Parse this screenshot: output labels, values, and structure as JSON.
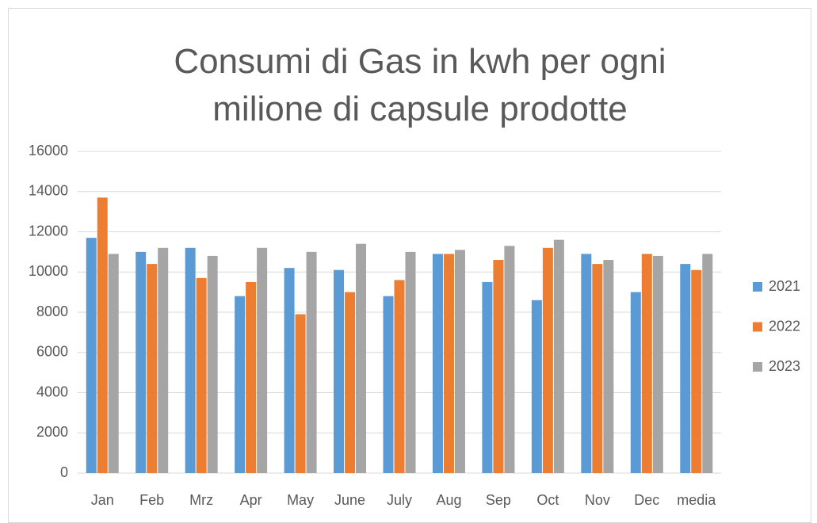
{
  "chart_data": {
    "type": "bar",
    "title": "Consumi di Gas in kwh per ogni milione di capsule prodotte",
    "categories": [
      "Jan",
      "Feb",
      "Mrz",
      "Apr",
      "May",
      "June",
      "July",
      "Aug",
      "Sep",
      "Oct",
      "Nov",
      "Dec",
      "media"
    ],
    "series": [
      {
        "name": "2021",
        "color": "#5b9bd5",
        "values": [
          11700,
          11000,
          11200,
          8800,
          10200,
          10100,
          8800,
          10900,
          9500,
          8600,
          10900,
          9000,
          10400
        ]
      },
      {
        "name": "2022",
        "color": "#ed7d31",
        "values": [
          13700,
          10400,
          9700,
          9500,
          7900,
          9000,
          9600,
          10900,
          10600,
          11200,
          10400,
          10900,
          10100
        ]
      },
      {
        "name": "2023",
        "color": "#a5a5a5",
        "values": [
          10900,
          11200,
          10800,
          11200,
          11000,
          11400,
          11000,
          11100,
          11300,
          11600,
          10600,
          10800,
          10900
        ]
      }
    ],
    "ylim": [
      0,
      16000
    ],
    "yticks": [
      0,
      2000,
      4000,
      6000,
      8000,
      10000,
      12000,
      14000,
      16000
    ],
    "grid": true,
    "legend": "right"
  }
}
